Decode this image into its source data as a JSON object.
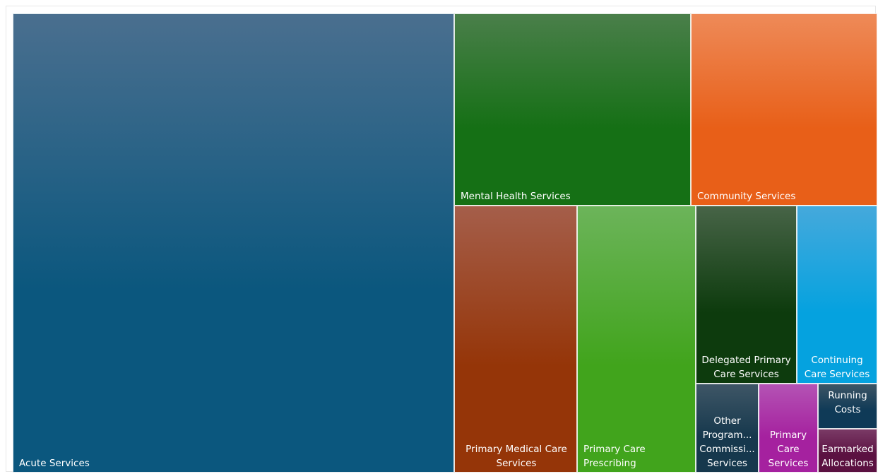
{
  "chart_data": {
    "type": "treemap",
    "items": [
      {
        "label": "Acute Services",
        "color_top": "#4a6f8f",
        "color_bottom": "#0b577e"
      },
      {
        "label": "Mental Health Services",
        "color_top": "#4a7f4a",
        "color_bottom": "#157015"
      },
      {
        "label": "Community Services",
        "color_top": "#ee8a58",
        "color_bottom": "#e85f18"
      },
      {
        "label": "Primary Medical Care Services",
        "color_top": "#a55e4a",
        "color_bottom": "#953508"
      },
      {
        "label": "Primary Care Prescribing",
        "color_top": "#6cb45a",
        "color_bottom": "#41a41c"
      },
      {
        "label": "Delegated Primary Care Services",
        "color_top": "#476447",
        "color_bottom": "#0d3b0d"
      },
      {
        "label": "Continuing Care Services",
        "color_top": "#45a9dc",
        "color_bottom": "#05a2df"
      },
      {
        "label": "Other Program... Commissi... Services",
        "color_top": "#3e5666",
        "color_bottom": "#16384d"
      },
      {
        "label": "Primary Care Services",
        "color_top": "#b453b4",
        "color_bottom": "#a5219f"
      },
      {
        "label": "Running Costs",
        "color_top": "#3d5565",
        "color_bottom": "#0f3a57"
      },
      {
        "label": "Earmarked Allocations",
        "color_top": "#7a3a66",
        "color_bottom": "#5b1141"
      }
    ]
  }
}
